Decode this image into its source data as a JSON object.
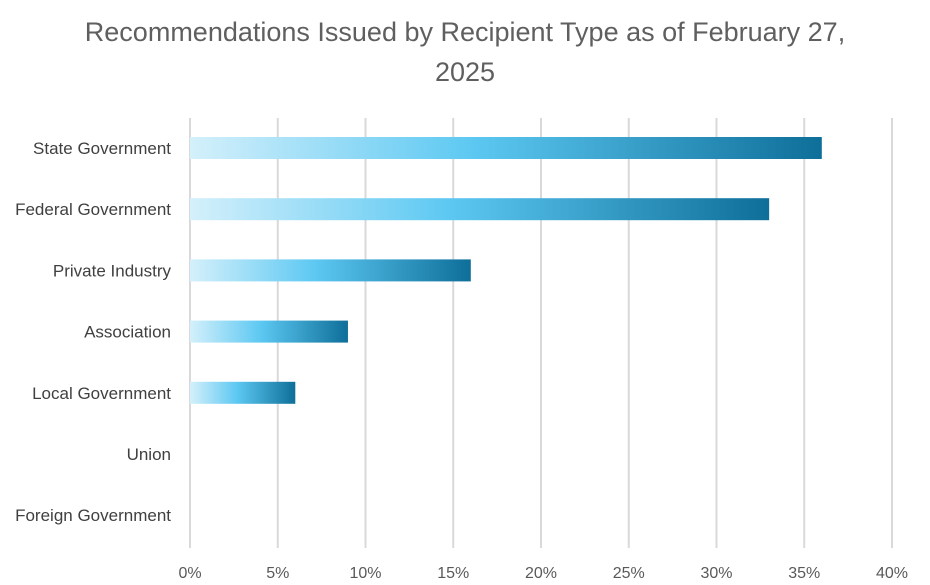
{
  "chart_data": {
    "type": "bar",
    "orientation": "horizontal",
    "title": "Recommendations Issued by Recipient Type as of February 27, 2025",
    "categories": [
      "State Government",
      "Federal Government",
      "Private Industry",
      "Association",
      "Local Government",
      "Union",
      "Foreign Government"
    ],
    "values": [
      36,
      33,
      16,
      9,
      6,
      0,
      0
    ],
    "value_format": "percent",
    "xlim": [
      0,
      40
    ],
    "xticks": [
      "0%",
      "5%",
      "10%",
      "15%",
      "20%",
      "25%",
      "30%",
      "35%",
      "40%"
    ],
    "grid": "vertical",
    "legend": "none",
    "colors": {
      "bar_gradient_start": "#d4f0fb",
      "bar_gradient_mid": "#5cc8f2",
      "bar_gradient_end": "#0e6f99",
      "grid": "#d9d9d9",
      "title": "#5f5f5f"
    }
  }
}
